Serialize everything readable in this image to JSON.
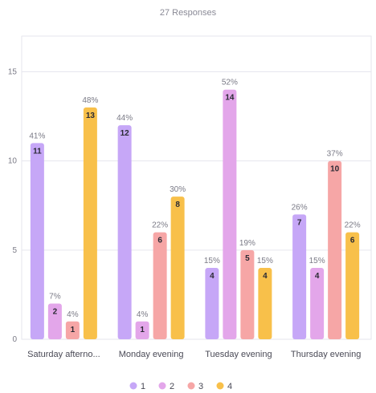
{
  "subtitle": "27 Responses",
  "chart_data": {
    "type": "bar",
    "categories": [
      "Saturday afterno...",
      "Monday evening",
      "Tuesday evening",
      "Thursday evening"
    ],
    "series": [
      {
        "name": "1",
        "color": "#c6a7f7",
        "values": [
          11,
          12,
          4,
          7
        ],
        "percents": [
          "41%",
          "44%",
          "15%",
          "26%"
        ]
      },
      {
        "name": "2",
        "color": "#e3a6ea",
        "values": [
          2,
          1,
          14,
          4
        ],
        "percents": [
          "7%",
          "4%",
          "52%",
          "15%"
        ]
      },
      {
        "name": "3",
        "color": "#f6a6a6",
        "values": [
          1,
          6,
          5,
          10
        ],
        "percents": [
          "4%",
          "22%",
          "19%",
          "37%"
        ]
      },
      {
        "name": "4",
        "color": "#f8c04a",
        "values": [
          13,
          8,
          4,
          6
        ],
        "percents": [
          "48%",
          "30%",
          "15%",
          "22%"
        ]
      }
    ],
    "yticks": [
      0,
      5,
      10,
      15
    ],
    "ylim": [
      0,
      17
    ],
    "grid": true,
    "legend": "bottom-center"
  }
}
